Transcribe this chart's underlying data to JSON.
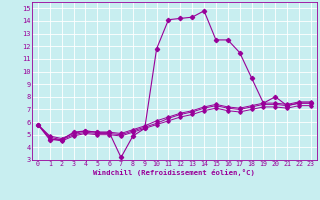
{
  "xlabel": "Windchill (Refroidissement éolien,°C)",
  "xlim": [
    -0.5,
    23.5
  ],
  "ylim": [
    3,
    15.5
  ],
  "xticks": [
    0,
    1,
    2,
    3,
    4,
    5,
    6,
    7,
    8,
    9,
    10,
    11,
    12,
    13,
    14,
    15,
    16,
    17,
    18,
    19,
    20,
    21,
    22,
    23
  ],
  "yticks": [
    3,
    4,
    5,
    6,
    7,
    8,
    9,
    10,
    11,
    12,
    13,
    14,
    15
  ],
  "bg_color": "#c8eef0",
  "line_color": "#990099",
  "grid_color": "#ffffff",
  "series1": [
    5.8,
    4.6,
    4.6,
    5.2,
    5.3,
    5.2,
    5.2,
    3.2,
    4.9,
    5.5,
    11.8,
    14.1,
    14.2,
    14.3,
    14.8,
    12.5,
    12.5,
    11.5,
    9.5,
    7.5,
    8.0,
    7.3,
    7.5,
    7.5
  ],
  "series2": [
    5.8,
    4.7,
    4.5,
    4.9,
    5.1,
    5.0,
    5.0,
    4.9,
    5.2,
    5.5,
    5.8,
    6.1,
    6.4,
    6.6,
    6.9,
    7.1,
    6.9,
    6.8,
    7.0,
    7.2,
    7.2,
    7.1,
    7.3,
    7.3
  ],
  "series3": [
    5.8,
    4.8,
    4.6,
    5.0,
    5.2,
    5.1,
    5.1,
    5.0,
    5.3,
    5.6,
    5.9,
    6.3,
    6.6,
    6.8,
    7.1,
    7.3,
    7.1,
    7.0,
    7.2,
    7.4,
    7.4,
    7.3,
    7.5,
    7.5
  ],
  "series4": [
    5.8,
    4.9,
    4.7,
    5.1,
    5.3,
    5.2,
    5.2,
    5.1,
    5.4,
    5.7,
    6.1,
    6.4,
    6.7,
    6.9,
    7.2,
    7.4,
    7.2,
    7.1,
    7.3,
    7.5,
    7.5,
    7.4,
    7.6,
    7.6
  ]
}
